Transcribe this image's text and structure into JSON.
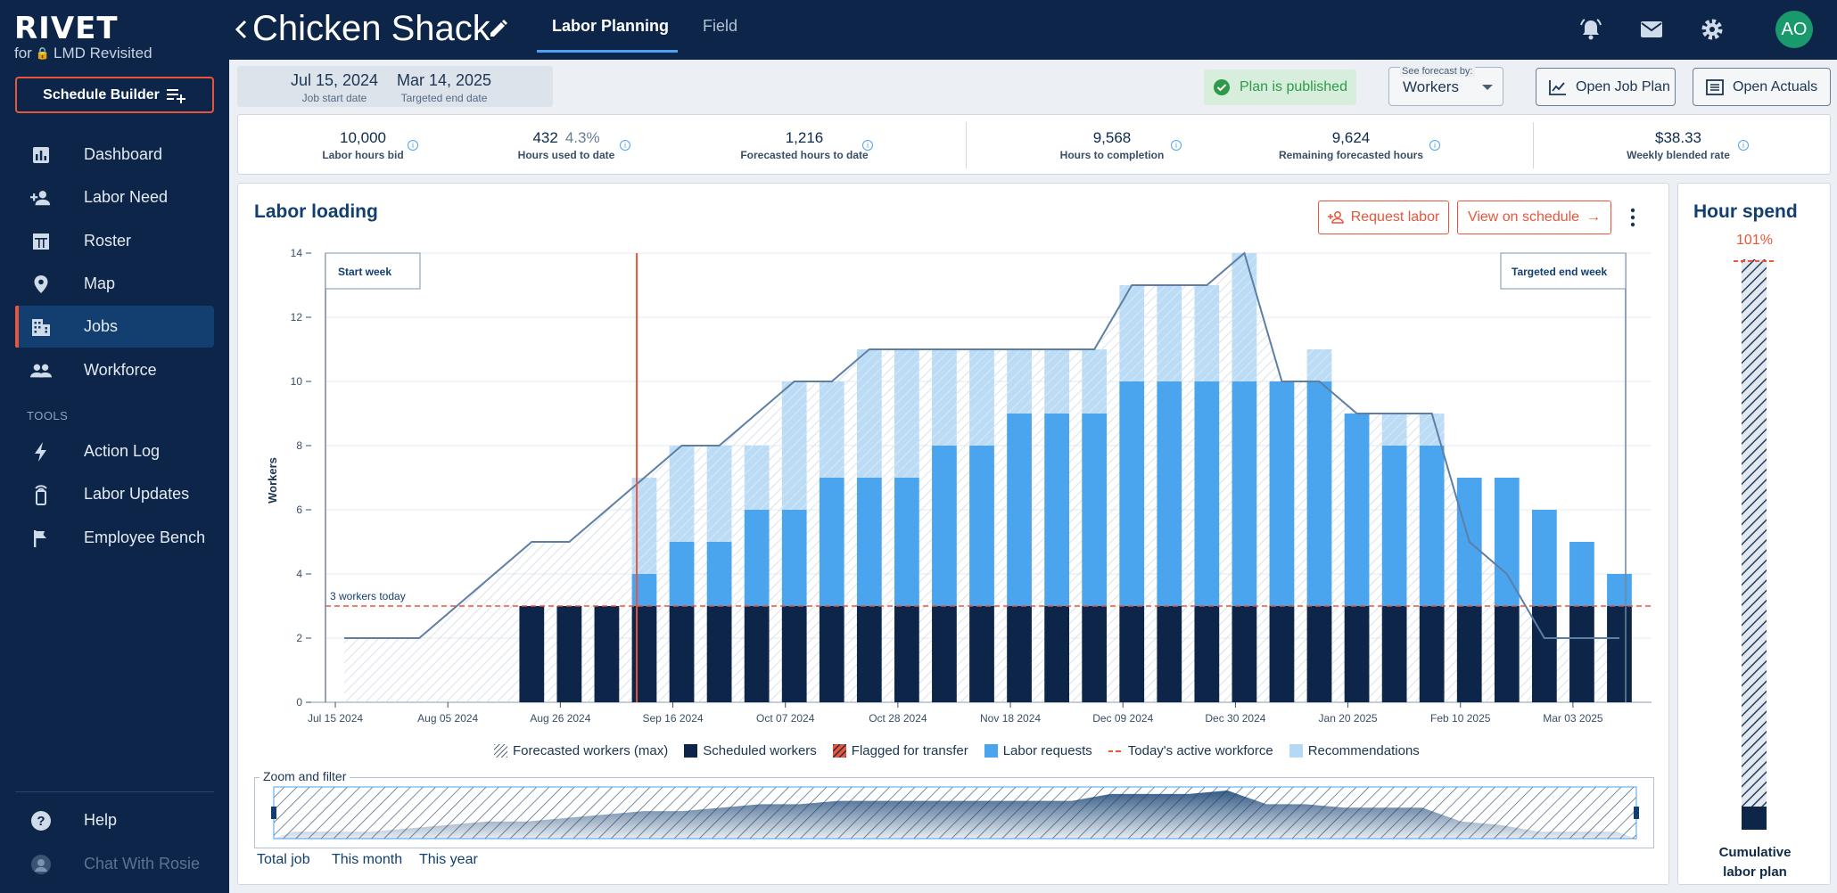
{
  "brand": {
    "logo": "RIVET",
    "org_prefix": "for",
    "org": "LMD Revisited"
  },
  "sidebar": {
    "schedule_builder": "Schedule Builder",
    "items": [
      {
        "label": "Dashboard",
        "icon": "bar-chart-icon"
      },
      {
        "label": "Labor Need",
        "icon": "person-add-icon"
      },
      {
        "label": "Roster",
        "icon": "table-icon"
      },
      {
        "label": "Map",
        "icon": "map-pin-icon"
      },
      {
        "label": "Jobs",
        "icon": "building-icon",
        "active": true
      },
      {
        "label": "Workforce",
        "icon": "people-icon"
      }
    ],
    "tools_label": "TOOLS",
    "tools": [
      {
        "label": "Action Log",
        "icon": "bolt-icon"
      },
      {
        "label": "Labor Updates",
        "icon": "device-icon"
      },
      {
        "label": "Employee Bench",
        "icon": "flag-icon"
      }
    ],
    "help": "Help",
    "chat": "Chat With Rosie"
  },
  "header": {
    "job_title": "Chicken Shack",
    "tabs": [
      {
        "label": "Labor Planning",
        "active": true
      },
      {
        "label": "Field"
      }
    ],
    "avatar": "AO"
  },
  "dates": {
    "start_value": "Jul 15, 2024",
    "start_label": "Job start date",
    "end_value": "Mar 14, 2025",
    "end_label": "Targeted end date"
  },
  "status": {
    "published": "Plan is published"
  },
  "forecast": {
    "label": "See forecast by:",
    "value": "Workers"
  },
  "actions": {
    "open_job_plan": "Open Job Plan",
    "open_actuals": "Open Actuals"
  },
  "stats": [
    {
      "value": "10,000",
      "label": "Labor hours bid"
    },
    {
      "value": "432",
      "extra": "4.3%",
      "label": "Hours used to date"
    },
    {
      "value": "1,216",
      "label": "Forecasted hours to date"
    },
    {
      "value": "9,568",
      "label": "Hours to completion"
    },
    {
      "value": "9,624",
      "label": "Remaining forecasted hours"
    },
    {
      "value": "$38.33",
      "label": "Weekly blended rate"
    }
  ],
  "labor_loading": {
    "title": "Labor loading",
    "request_labor": "Request labor",
    "view_on_schedule": "View on schedule",
    "start_week_label": "Start week",
    "end_week_label": "Targeted end week",
    "today_label": "3 workers today",
    "legend": [
      "Forecasted workers (max)",
      "Scheduled workers",
      "Flagged for transfer",
      "Labor requests",
      "Today's active workforce",
      "Recommendations"
    ],
    "zoom_title": "Zoom and filter",
    "ranges": [
      "Total job",
      "This month",
      "This year"
    ]
  },
  "chart_data": {
    "type": "bar",
    "ylabel": "Workers",
    "ylim": [
      0,
      14
    ],
    "yticks": [
      0,
      2,
      4,
      6,
      8,
      10,
      12,
      14
    ],
    "xtick_labels": [
      "Jul 15 2024",
      "Aug 05 2024",
      "Aug 26 2024",
      "Sep 16 2024",
      "Oct 07 2024",
      "Oct 28 2024",
      "Nov 18 2024",
      "Dec 09 2024",
      "Dec 30 2024",
      "Jan 20 2025",
      "Feb 10 2025",
      "Mar 03 2025"
    ],
    "today_active_workforce": 3,
    "weeks": 35,
    "today_week": 7.8,
    "scheduled": [
      0,
      0,
      0,
      0,
      0,
      3,
      3,
      3,
      3,
      3,
      3,
      3,
      3,
      3,
      3,
      3,
      3,
      3,
      3,
      3,
      3,
      3,
      3,
      3,
      3,
      3,
      3,
      3,
      3,
      3,
      3,
      3,
      3,
      3,
      3
    ],
    "labor_requests": [
      0,
      0,
      0,
      0,
      0,
      0,
      0,
      0,
      1,
      2,
      2,
      3,
      3,
      4,
      4,
      4,
      5,
      5,
      6,
      6,
      6,
      7,
      7,
      7,
      7,
      7,
      7,
      6,
      5,
      5,
      4,
      4,
      3,
      2,
      1
    ],
    "recommendations": [
      0,
      0,
      0,
      0,
      0,
      0,
      0,
      0,
      3,
      3,
      3,
      2,
      4,
      3,
      4,
      4,
      3,
      3,
      2,
      2,
      2,
      3,
      3,
      3,
      4,
      0,
      1,
      0,
      1,
      1,
      0,
      0,
      0,
      0,
      0
    ],
    "forecasted_max": [
      2,
      2,
      2,
      3,
      4,
      5,
      5,
      6,
      7,
      8,
      8,
      9,
      10,
      10,
      11,
      11,
      11,
      11,
      11,
      11,
      11,
      13,
      13,
      13,
      14,
      10,
      10,
      9,
      9,
      9,
      5,
      4,
      2,
      2,
      2
    ]
  },
  "hour_spend": {
    "title": "Hour spend",
    "percent": "101%",
    "caption_line1": "Cumulative",
    "caption_line2": "labor plan"
  }
}
